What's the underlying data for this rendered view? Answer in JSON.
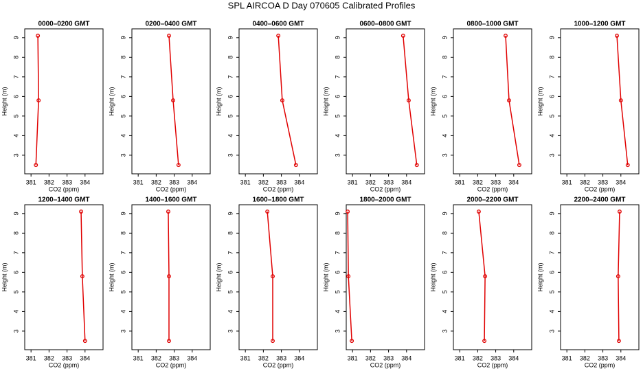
{
  "title": "SPL AIRCOA D  Day 070605  Calibrated Profiles",
  "chart_data": [
    {
      "type": "line",
      "title": "0000–0200 GMT",
      "xlabel": "CO2 (ppm)",
      "ylabel": "Height (m)",
      "x": [
        381.27,
        381.42,
        381.38
      ],
      "values": [
        2.5,
        5.8,
        9.1
      ],
      "color": "#e00000",
      "xlim": [
        380.65,
        385.0
      ],
      "ylim": [
        2.05,
        9.45
      ],
      "xticks": [
        381,
        382,
        383,
        384
      ],
      "yticks": [
        3,
        4,
        5,
        6,
        7,
        8,
        9
      ]
    },
    {
      "type": "line",
      "title": "0200–0400 GMT",
      "xlabel": "CO2 (ppm)",
      "ylabel": "Height (m)",
      "x": [
        383.24,
        382.94,
        382.71
      ],
      "values": [
        2.5,
        5.8,
        9.1
      ],
      "color": "#e00000",
      "xlim": [
        380.65,
        385.0
      ],
      "ylim": [
        2.05,
        9.45
      ],
      "xticks": [
        381,
        382,
        383,
        384
      ],
      "yticks": [
        3,
        4,
        5,
        6,
        7,
        8,
        9
      ]
    },
    {
      "type": "line",
      "title": "0400–0600 GMT",
      "xlabel": "CO2 (ppm)",
      "ylabel": "Height (m)",
      "x": [
        383.81,
        383.05,
        382.83
      ],
      "values": [
        2.5,
        5.8,
        9.1
      ],
      "color": "#e00000",
      "xlim": [
        380.65,
        385.0
      ],
      "ylim": [
        2.05,
        9.45
      ],
      "xticks": [
        381,
        382,
        383,
        384
      ],
      "yticks": [
        3,
        4,
        5,
        6,
        7,
        8,
        9
      ]
    },
    {
      "type": "line",
      "title": "0600–0800 GMT",
      "xlabel": "CO2 (ppm)",
      "ylabel": "Height (m)",
      "x": [
        384.57,
        384.12,
        383.81
      ],
      "values": [
        2.5,
        5.8,
        9.1
      ],
      "color": "#e00000",
      "xlim": [
        380.65,
        385.0
      ],
      "ylim": [
        2.05,
        9.45
      ],
      "xticks": [
        381,
        382,
        383,
        384
      ],
      "yticks": [
        3,
        4,
        5,
        6,
        7,
        8,
        9
      ]
    },
    {
      "type": "line",
      "title": "0800–1000 GMT",
      "xlabel": "CO2 (ppm)",
      "ylabel": "Height (m)",
      "x": [
        384.31,
        383.74,
        383.55
      ],
      "values": [
        2.5,
        5.8,
        9.1
      ],
      "color": "#e00000",
      "xlim": [
        380.65,
        385.0
      ],
      "ylim": [
        2.05,
        9.45
      ],
      "xticks": [
        381,
        382,
        383,
        384
      ],
      "yticks": [
        3,
        4,
        5,
        6,
        7,
        8,
        9
      ]
    },
    {
      "type": "line",
      "title": "1000–1200 GMT",
      "xlabel": "CO2 (ppm)",
      "ylabel": "Height (m)",
      "x": [
        384.38,
        384.0,
        383.78
      ],
      "values": [
        2.5,
        5.8,
        9.1
      ],
      "color": "#e00000",
      "xlim": [
        380.65,
        385.0
      ],
      "ylim": [
        2.05,
        9.45
      ],
      "xticks": [
        381,
        382,
        383,
        384
      ],
      "yticks": [
        3,
        4,
        5,
        6,
        7,
        8,
        9
      ]
    },
    {
      "type": "line",
      "title": "1200–1400 GMT",
      "xlabel": "CO2 (ppm)",
      "ylabel": "Height (m)",
      "x": [
        384.0,
        383.85,
        383.78
      ],
      "values": [
        2.5,
        5.8,
        9.1
      ],
      "color": "#e00000",
      "xlim": [
        380.65,
        385.0
      ],
      "ylim": [
        2.05,
        9.45
      ],
      "xticks": [
        381,
        382,
        383,
        384
      ],
      "yticks": [
        3,
        4,
        5,
        6,
        7,
        8,
        9
      ]
    },
    {
      "type": "line",
      "title": "1400–1600 GMT",
      "xlabel": "CO2 (ppm)",
      "ylabel": "Height (m)",
      "x": [
        382.71,
        382.71,
        382.67
      ],
      "values": [
        2.5,
        5.8,
        9.1
      ],
      "color": "#e00000",
      "xlim": [
        380.65,
        385.0
      ],
      "ylim": [
        2.05,
        9.45
      ],
      "xticks": [
        381,
        382,
        383,
        384
      ],
      "yticks": [
        3,
        4,
        5,
        6,
        7,
        8,
        9
      ]
    },
    {
      "type": "line",
      "title": "1600–1800 GMT",
      "xlabel": "CO2 (ppm)",
      "ylabel": "Height (m)",
      "x": [
        382.52,
        382.52,
        382.22
      ],
      "values": [
        2.5,
        5.8,
        9.1
      ],
      "color": "#e00000",
      "xlim": [
        380.65,
        385.0
      ],
      "ylim": [
        2.05,
        9.45
      ],
      "xticks": [
        381,
        382,
        383,
        384
      ],
      "yticks": [
        3,
        4,
        5,
        6,
        7,
        8,
        9
      ]
    },
    {
      "type": "line",
      "title": "1800–2000 GMT",
      "xlabel": "CO2 (ppm)",
      "ylabel": "Height (m)",
      "x": [
        380.96,
        380.77,
        380.73
      ],
      "values": [
        2.5,
        5.8,
        9.1
      ],
      "color": "#e00000",
      "xlim": [
        380.65,
        385.0
      ],
      "ylim": [
        2.05,
        9.45
      ],
      "xticks": [
        381,
        382,
        383,
        384
      ],
      "yticks": [
        3,
        4,
        5,
        6,
        7,
        8,
        9
      ]
    },
    {
      "type": "line",
      "title": "2000–2200 GMT",
      "xlabel": "CO2 (ppm)",
      "ylabel": "Height (m)",
      "x": [
        382.37,
        382.41,
        382.06
      ],
      "values": [
        2.5,
        5.8,
        9.1
      ],
      "color": "#e00000",
      "xlim": [
        380.65,
        385.0
      ],
      "ylim": [
        2.05,
        9.45
      ],
      "xticks": [
        381,
        382,
        383,
        384
      ],
      "yticks": [
        3,
        4,
        5,
        6,
        7,
        8,
        9
      ]
    },
    {
      "type": "line",
      "title": "2200–2400 GMT",
      "xlabel": "CO2 (ppm)",
      "ylabel": "Height (m)",
      "x": [
        383.89,
        383.85,
        383.93
      ],
      "values": [
        2.5,
        5.8,
        9.1
      ],
      "color": "#e00000",
      "xlim": [
        380.65,
        385.0
      ],
      "ylim": [
        2.05,
        9.45
      ],
      "xticks": [
        381,
        382,
        383,
        384
      ],
      "yticks": [
        3,
        4,
        5,
        6,
        7,
        8,
        9
      ]
    }
  ]
}
